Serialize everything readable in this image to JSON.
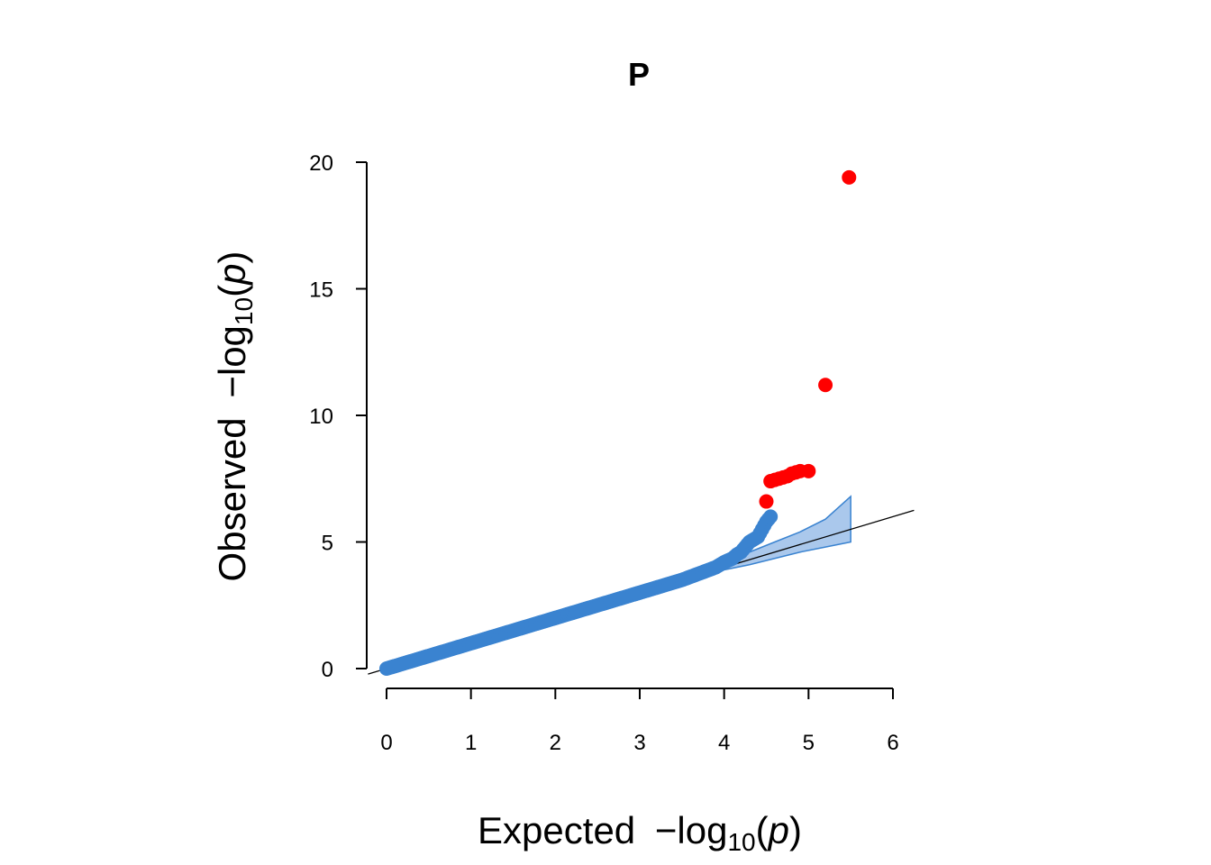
{
  "chart_data": {
    "type": "scatter",
    "title": "P",
    "xlabel": {
      "main": "Expected ",
      "minus": "−",
      "log": "log",
      "sub": "10",
      "open": "(",
      "var": "p",
      "close": ")"
    },
    "ylabel": {
      "main": "Observed ",
      "minus": "−",
      "log": "log",
      "sub": "10",
      "open": "(",
      "var": "p",
      "close": ")"
    },
    "xlim": [
      0,
      6
    ],
    "ylim": [
      0,
      20
    ],
    "xticks": [
      "0",
      "1",
      "2",
      "3",
      "4",
      "5",
      "6"
    ],
    "yticks": [
      "0",
      "5",
      "10",
      "15",
      "20"
    ],
    "grid": false,
    "legend": "none",
    "colors": {
      "points": "#3a83d0",
      "highlight": "#ff0000",
      "band_fill": "#aac8ec",
      "band_line": "#3a83d0",
      "line": "#000000"
    },
    "reference_line": {
      "slope": 1,
      "intercept": 0
    },
    "confidence_band": {
      "x": [
        4.0,
        4.3,
        4.6,
        4.9,
        5.2,
        5.5
      ],
      "upper": [
        4.25,
        4.6,
        5.0,
        5.4,
        5.9,
        6.8
      ],
      "lower": [
        3.9,
        4.1,
        4.35,
        4.6,
        4.8,
        5.0
      ]
    },
    "series": [
      {
        "values": [
          [
            0,
            0
          ],
          [
            0.5,
            0.5
          ],
          [
            1,
            1
          ],
          [
            1.5,
            1.5
          ],
          [
            2,
            2
          ],
          [
            2.5,
            2.5
          ],
          [
            3,
            3
          ],
          [
            3.3,
            3.3
          ],
          [
            3.5,
            3.5
          ],
          [
            3.7,
            3.75
          ],
          [
            3.9,
            4.0
          ],
          [
            4.0,
            4.2
          ],
          [
            4.1,
            4.35
          ],
          [
            4.15,
            4.5
          ],
          [
            4.2,
            4.6
          ],
          [
            4.25,
            4.8
          ],
          [
            4.3,
            5.0
          ],
          [
            4.4,
            5.2
          ],
          [
            4.45,
            5.5
          ],
          [
            4.5,
            5.8
          ],
          [
            4.55,
            6.0
          ]
        ]
      },
      {
        "values": [
          [
            4.5,
            6.6
          ],
          [
            4.55,
            7.4
          ],
          [
            4.6,
            7.45
          ],
          [
            4.65,
            7.5
          ],
          [
            4.7,
            7.55
          ],
          [
            4.75,
            7.6
          ],
          [
            4.8,
            7.7
          ],
          [
            4.85,
            7.75
          ],
          [
            4.9,
            7.8
          ],
          [
            5.0,
            7.8
          ],
          [
            5.2,
            11.2
          ],
          [
            5.48,
            19.4
          ]
        ]
      }
    ]
  }
}
